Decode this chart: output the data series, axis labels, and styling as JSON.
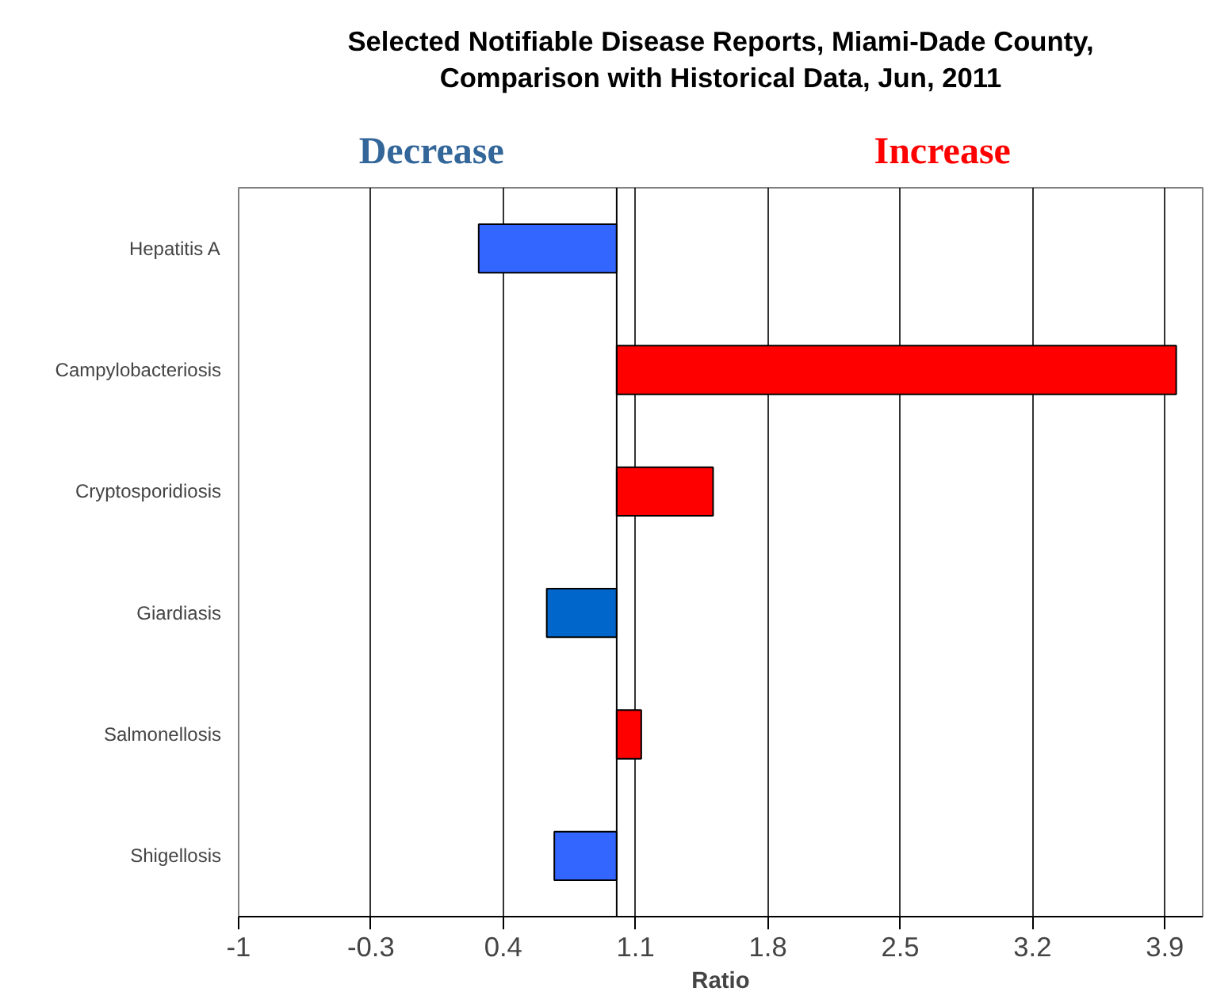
{
  "chart_data": {
    "type": "bar",
    "orientation": "horizontal",
    "title": "Selected Notifiable Disease Reports, Miami-Dade County,\nComparison with Historical Data, Jun, 2011",
    "xlabel": "Ratio",
    "categories": [
      "Hepatitis A",
      "Campylobacteriosis",
      "Cryptosporidiosis",
      "Giardiasis",
      "Salmonellosis",
      "Shigellosis"
    ],
    "base": [
      1,
      1,
      1,
      1,
      1,
      1
    ],
    "values": [
      -0.73,
      2.96,
      0.51,
      -0.37,
      0.13,
      -0.33
    ],
    "colors": [
      "#3366ff",
      "#ff0000",
      "#ff0000",
      "#0066cc",
      "#ff0000",
      "#3366ff"
    ],
    "xlim": [
      -1,
      4.1
    ],
    "xticks": [
      -1,
      -0.3,
      0.4,
      1.1,
      1.8,
      2.5,
      3.2,
      3.9
    ],
    "grid": "x",
    "ref_lines": [
      {
        "axis": "x",
        "value": 1,
        "label": null,
        "color": "#000000"
      }
    ],
    "annotations": [
      "Decrease",
      "Increase"
    ]
  }
}
